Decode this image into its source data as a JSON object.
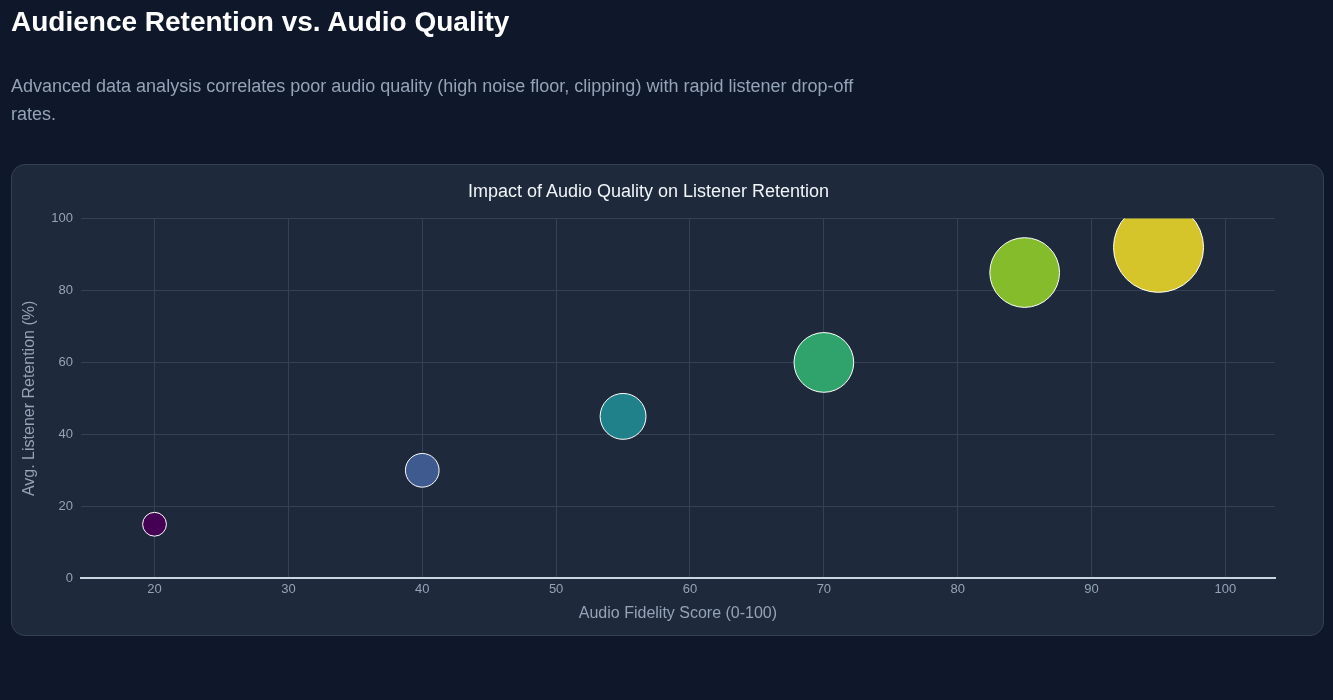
{
  "chart_data": {
    "type": "bubble",
    "title": "Impact of Audio Quality on Listener Retention",
    "xlabel": "Audio Fidelity Score (0-100)",
    "ylabel": "Avg. Listener Retention (%)",
    "annotations": [
      "Audience Retention vs. Audio Quality",
      "Advanced data analysis correlates poor audio quality (high noise floor, clipping) with rapid listener drop-off rates."
    ],
    "x": [
      20,
      40,
      55,
      70,
      85,
      95
    ],
    "values": [
      15,
      30,
      45,
      60,
      85,
      92
    ],
    "sizes": [
      0.07,
      0.14,
      0.26,
      0.44,
      0.6,
      1
    ],
    "colors": [
      "#440154",
      "#3e5a8f",
      "#21818a",
      "#2fa36b",
      "#84bc2c",
      "#d6c52a"
    ],
    "xlim": [
      14.5,
      103.7
    ],
    "xticks": [
      20,
      30,
      40,
      50,
      60,
      70,
      80,
      90,
      100
    ],
    "ylim": [
      0,
      100
    ],
    "yticks": [
      0,
      20,
      40,
      60,
      80,
      100
    ],
    "grid": true,
    "legend": false
  }
}
